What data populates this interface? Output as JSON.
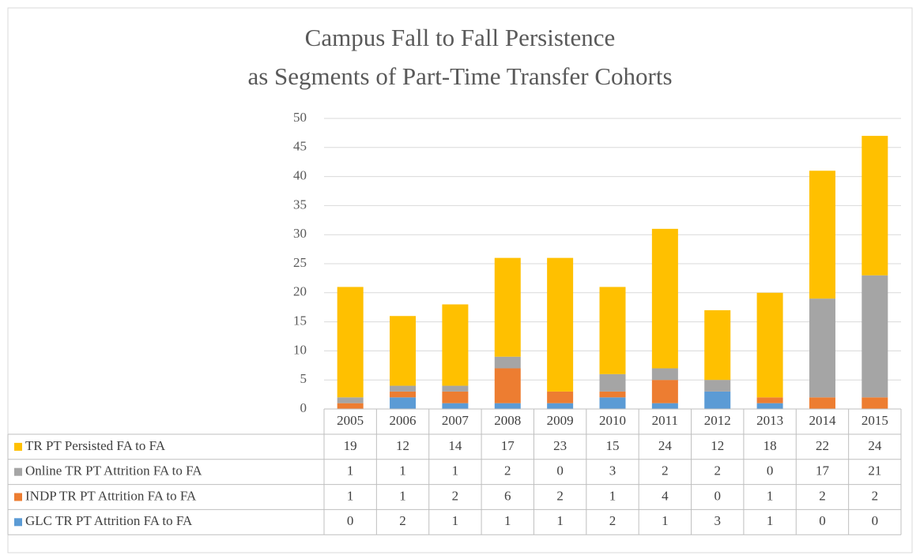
{
  "chart_data": {
    "type": "bar",
    "stacked": true,
    "title": [
      "Campus Fall to Fall Persistence",
      "as Segments of Part-Time Transfer Cohorts"
    ],
    "categories": [
      "2005",
      "2006",
      "2007",
      "2008",
      "2009",
      "2010",
      "2011",
      "2012",
      "2013",
      "2014",
      "2015"
    ],
    "series": [
      {
        "name": "TR PT Persisted FA to FA",
        "color": "#ffc000",
        "values": [
          19,
          12,
          14,
          17,
          23,
          15,
          24,
          12,
          18,
          22,
          24
        ]
      },
      {
        "name": "Online TR PT Attrition FA to FA",
        "color": "#a5a5a5",
        "values": [
          1,
          1,
          1,
          2,
          0,
          3,
          2,
          2,
          0,
          17,
          21
        ]
      },
      {
        "name": "INDP TR PT Attrition FA to FA",
        "color": "#ed7d31",
        "values": [
          1,
          1,
          2,
          6,
          2,
          1,
          4,
          0,
          1,
          2,
          2
        ]
      },
      {
        "name": "GLC TR PT Attrition FA to FA",
        "color": "#5b9bd5",
        "values": [
          0,
          2,
          1,
          1,
          1,
          2,
          1,
          3,
          1,
          0,
          0
        ]
      }
    ],
    "ylim": [
      0,
      50
    ],
    "yticks": [
      0,
      5,
      10,
      15,
      20,
      25,
      30,
      35,
      40,
      45,
      50
    ],
    "grid": true
  }
}
